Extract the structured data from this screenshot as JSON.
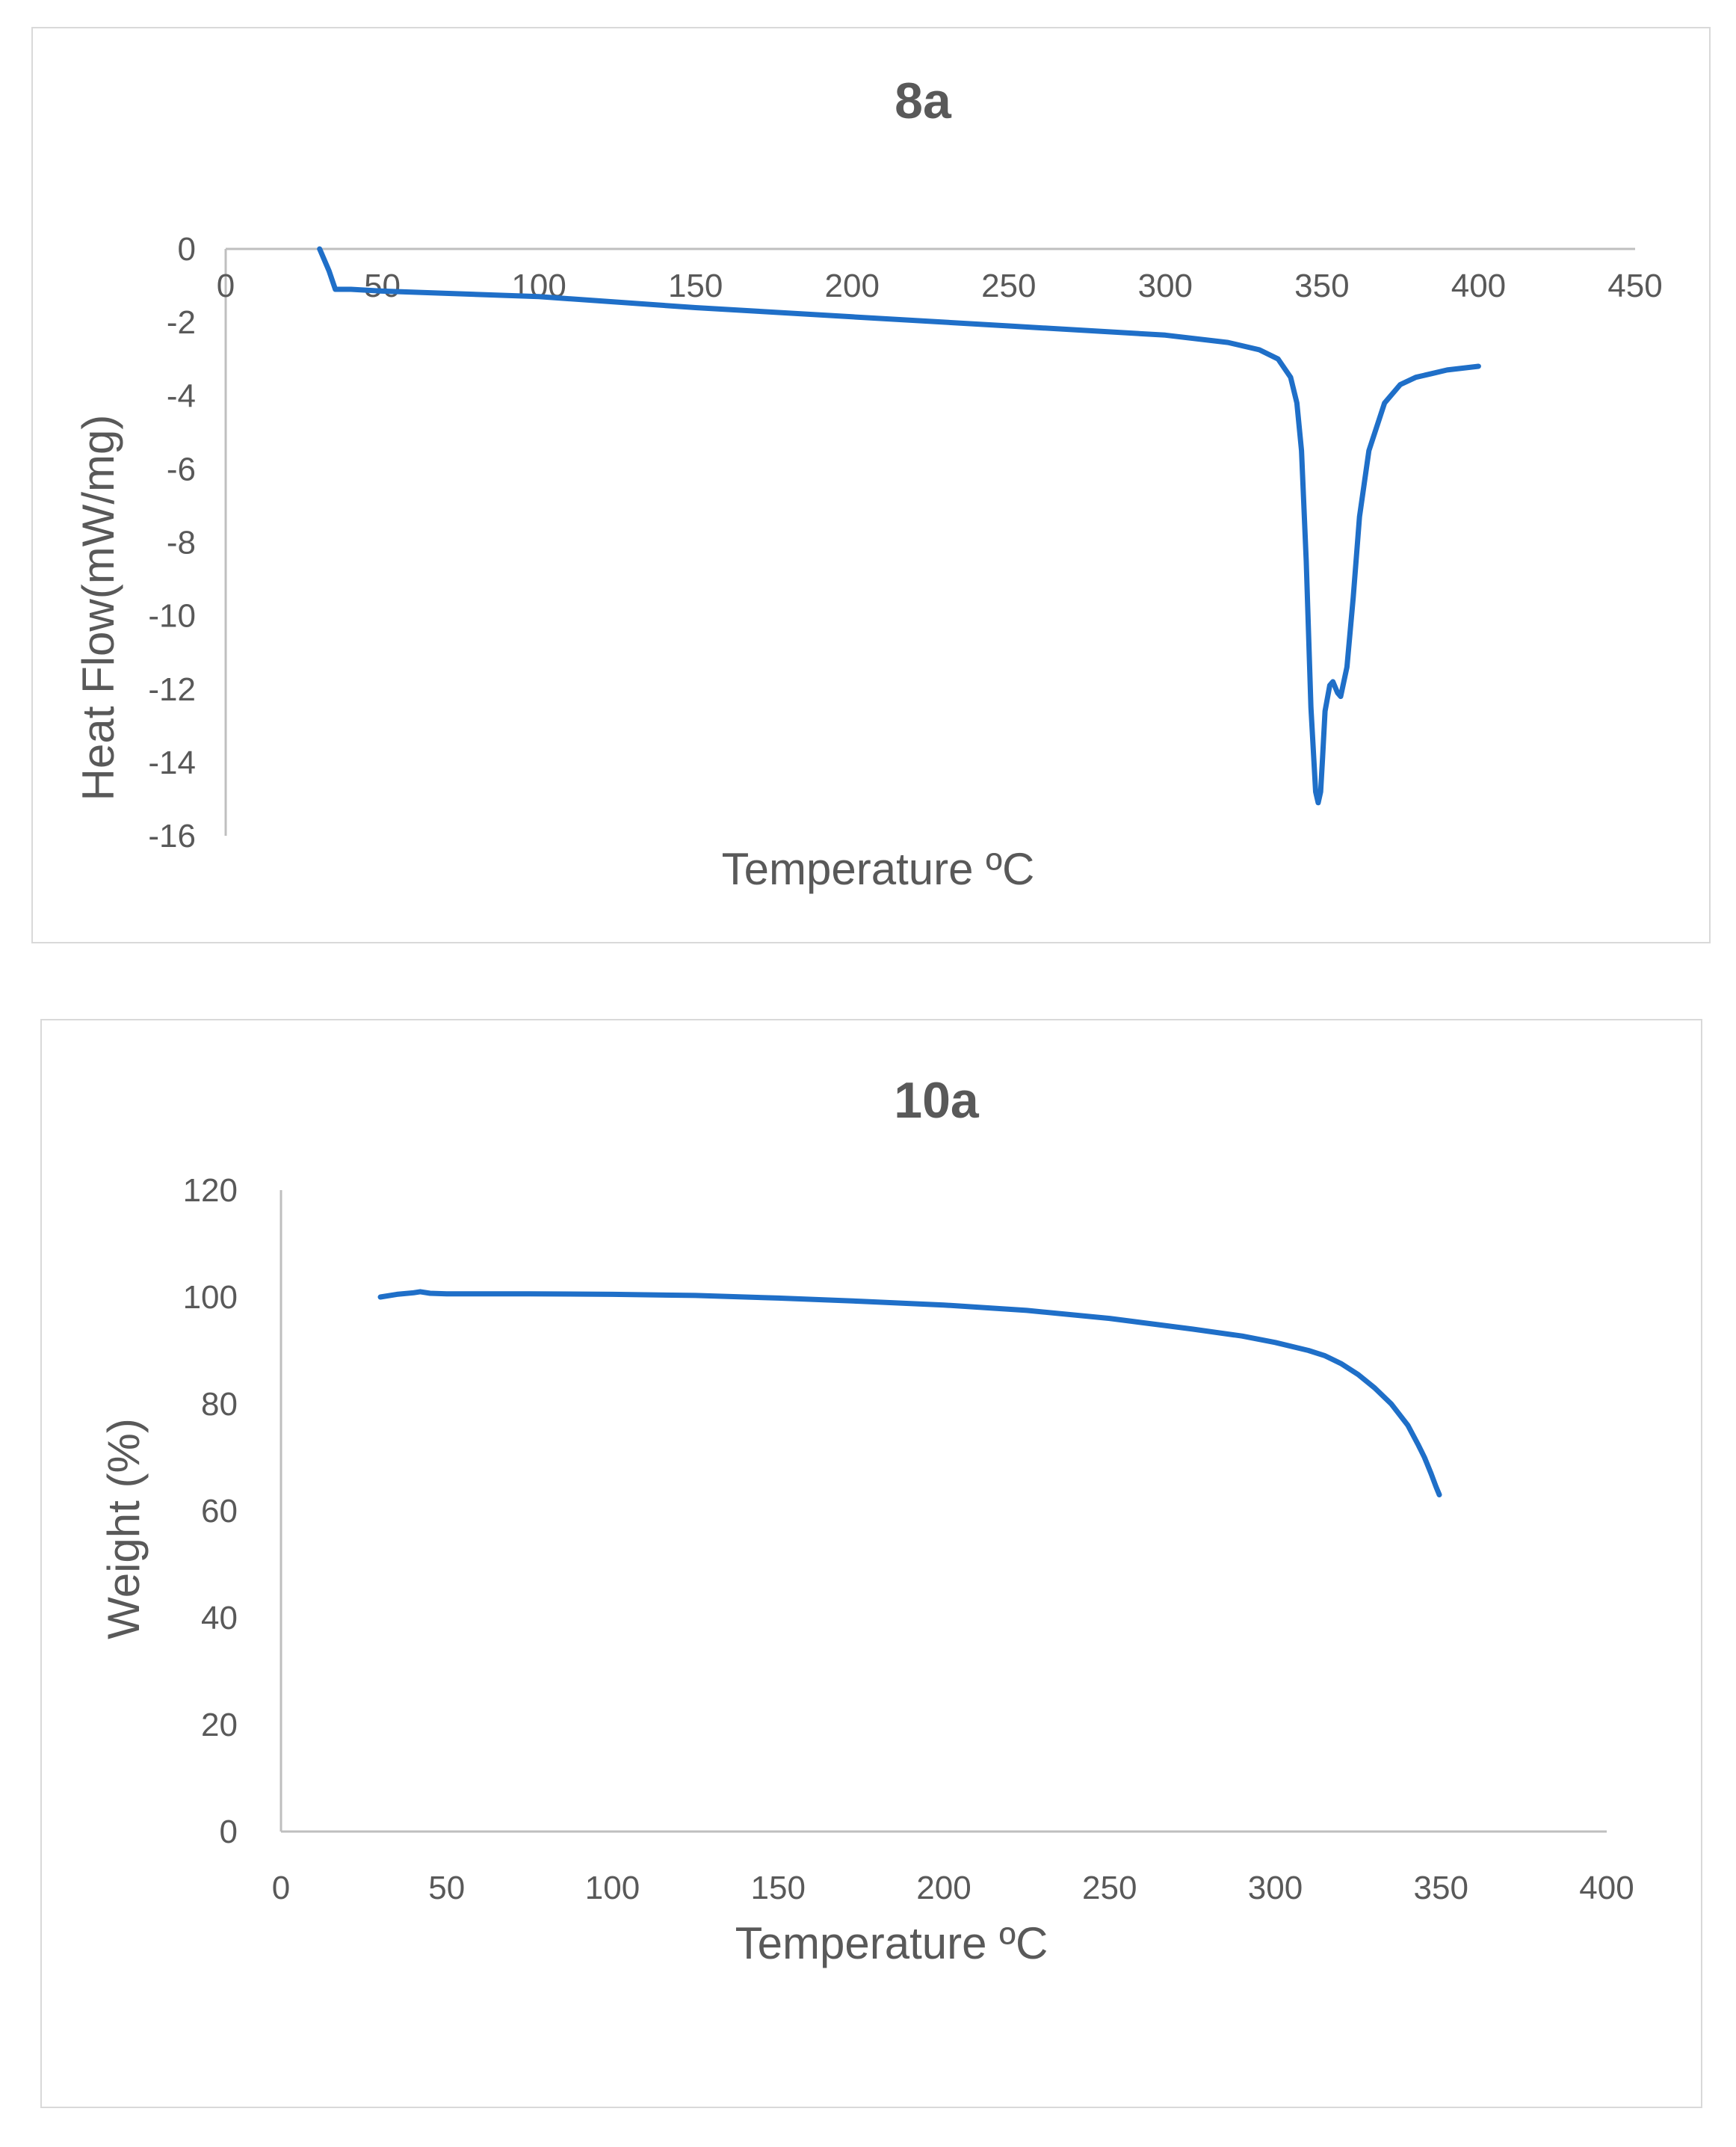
{
  "chart_data": [
    {
      "id": "8a",
      "type": "line",
      "title": "8a",
      "xlabel": "Temperature ºC",
      "ylabel": "Heat Flow(mW/mg)",
      "xlim": [
        0,
        450
      ],
      "ylim": [
        -16,
        0
      ],
      "xticks": [
        "0",
        "50",
        "100",
        "150",
        "200",
        "250",
        "300",
        "350",
        "400",
        "450"
      ],
      "yticks": [
        "0",
        "-2",
        "-4",
        "-6",
        "-8",
        "-10",
        "-12",
        "-14",
        "-16"
      ],
      "grid": false,
      "legend": "none",
      "color": "#1f6fc8",
      "series": [
        {
          "name": "Heat Flow",
          "x": [
            30,
            33,
            35,
            40,
            50,
            100,
            150,
            170,
            200,
            250,
            300,
            320,
            330,
            336,
            340,
            342,
            343.5,
            345,
            346.5,
            348,
            348.8,
            349.6,
            350.2,
            351,
            352.5,
            353.5,
            355,
            356,
            358,
            360,
            362,
            365,
            370,
            375,
            380,
            385,
            390,
            400
          ],
          "y": [
            0,
            -0.6,
            -1.1,
            -1.1,
            -1.15,
            -1.3,
            -1.6,
            -1.7,
            -1.85,
            -2.1,
            -2.35,
            -2.55,
            -2.75,
            -3.0,
            -3.5,
            -4.2,
            -5.5,
            -8.5,
            -12.5,
            -14.8,
            -15.1,
            -14.8,
            -13.9,
            -12.6,
            -11.9,
            -11.8,
            -12.1,
            -12.2,
            -11.4,
            -9.5,
            -7.3,
            -5.5,
            -4.2,
            -3.7,
            -3.5,
            -3.4,
            -3.3,
            -3.2
          ]
        }
      ]
    },
    {
      "id": "10a",
      "type": "line",
      "title": "10a",
      "xlabel": "Temperature ºC",
      "ylabel": "Weight (%)",
      "xlim": [
        0,
        400
      ],
      "ylim": [
        0,
        120
      ],
      "xticks": [
        "0",
        "50",
        "100",
        "150",
        "200",
        "250",
        "300",
        "350",
        "400"
      ],
      "yticks": [
        "0",
        "20",
        "40",
        "60",
        "80",
        "100",
        "120"
      ],
      "grid": false,
      "legend": "none",
      "color": "#1f6fc8",
      "series": [
        {
          "name": "Weight",
          "x": [
            30,
            35,
            40,
            42,
            45,
            50,
            75,
            100,
            125,
            150,
            175,
            200,
            225,
            250,
            275,
            290,
            300,
            310,
            315,
            320,
            325,
            330,
            335,
            340,
            343,
            345,
            347,
            348.5,
            349.5
          ],
          "y": [
            100,
            100.5,
            100.8,
            101,
            100.7,
            100.6,
            100.6,
            100.5,
            100.3,
            99.8,
            99.2,
            98.5,
            97.5,
            96,
            94,
            92.7,
            91.5,
            90,
            89,
            87.5,
            85.5,
            83,
            80,
            76,
            72.5,
            70,
            67,
            64.5,
            63
          ]
        }
      ]
    }
  ]
}
